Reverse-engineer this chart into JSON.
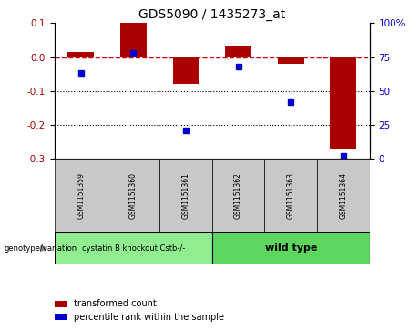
{
  "title": "GDS5090 / 1435273_at",
  "samples": [
    "GSM1151359",
    "GSM1151360",
    "GSM1151361",
    "GSM1151362",
    "GSM1151363",
    "GSM1151364"
  ],
  "red_values": [
    0.015,
    0.1,
    -0.08,
    0.035,
    -0.02,
    -0.27
  ],
  "blue_percentiles": [
    63,
    78,
    21,
    68,
    42,
    2
  ],
  "group1_label": "cystatin B knockout Cstb-/-",
  "group2_label": "wild type",
  "group1_indices": [
    0,
    1,
    2
  ],
  "group2_indices": [
    3,
    4,
    5
  ],
  "group1_color": "#90EE90",
  "group2_color": "#5CD65C",
  "ylim_left": [
    -0.3,
    0.1
  ],
  "ylim_right": [
    0,
    100
  ],
  "yticks_left": [
    -0.3,
    -0.2,
    -0.1,
    0.0,
    0.1
  ],
  "yticks_right": [
    0,
    25,
    50,
    75,
    100
  ],
  "red_color": "#AA0000",
  "blue_color": "#0000CC",
  "zero_line_color": "#CC0000",
  "dot_line_color": "#000000",
  "legend_red_label": "transformed count",
  "legend_blue_label": "percentile rank within the sample",
  "bar_width": 0.5,
  "sample_box_color": "#C8C8C8",
  "figwidth": 4.61,
  "figheight": 3.63,
  "dpi": 100
}
